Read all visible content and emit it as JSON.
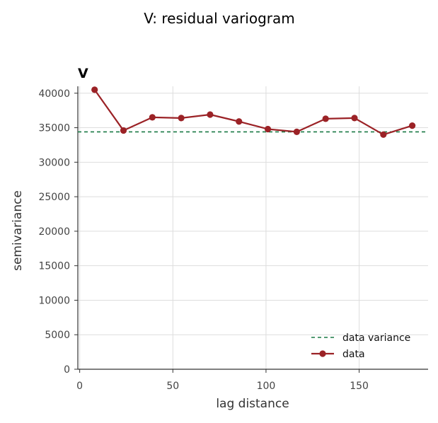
{
  "figure": {
    "suptitle": "V: residual variogram",
    "panel_title": "V"
  },
  "chart_data": {
    "type": "line",
    "title": "V",
    "xlabel": "lag distance",
    "ylabel": "semivariance",
    "xlim": [
      -1,
      187
    ],
    "ylim": [
      0,
      41000
    ],
    "xticks": [
      0,
      50,
      100,
      150
    ],
    "yticks": [
      0,
      5000,
      10000,
      15000,
      20000,
      25000,
      30000,
      35000,
      40000
    ],
    "grid": true,
    "legend_position": "lower-right",
    "series": [
      {
        "name": "data",
        "color": "#9b2226",
        "marker": "circle",
        "x": [
          8,
          23.5,
          39,
          54.5,
          70,
          85.5,
          101,
          116.5,
          132,
          147.5,
          163,
          178.5
        ],
        "y": [
          40500,
          34600,
          36500,
          36400,
          36900,
          35900,
          34800,
          34400,
          36300,
          36400,
          34000,
          35300
        ]
      }
    ],
    "reference_lines": [
      {
        "name": "data variance",
        "y": 34400,
        "color": "#1a7a45",
        "style": "dashed"
      }
    ]
  }
}
